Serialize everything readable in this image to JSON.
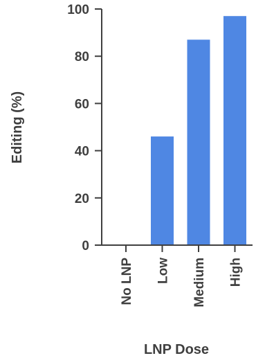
{
  "chart_data": {
    "type": "bar",
    "title": "",
    "xlabel": "LNP Dose",
    "ylabel": "Editing (%)",
    "categories": [
      "No LNP",
      "Low",
      "Medium",
      "High"
    ],
    "values": [
      0,
      46,
      87,
      97
    ],
    "ylim": [
      0,
      100
    ],
    "yticks": [
      "0",
      "20",
      "40",
      "60",
      "80",
      "100"
    ],
    "grid": false,
    "legend": "none",
    "bar_color": "#4f87e3",
    "axis_color": "#3f3f3f"
  }
}
